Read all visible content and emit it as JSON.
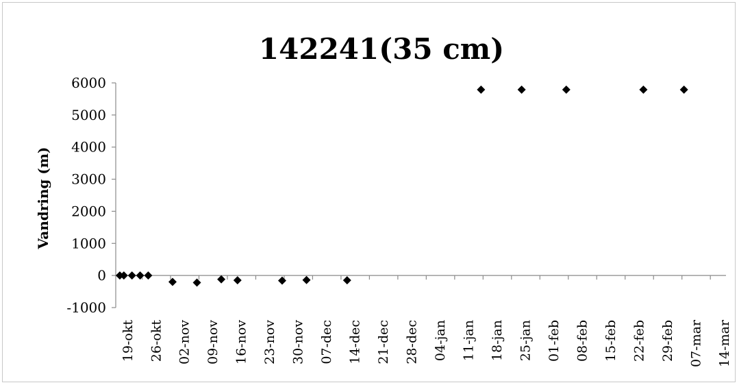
{
  "chart_data": {
    "type": "scatter",
    "title": "142241(35 cm)",
    "xlabel": "",
    "ylabel": "Vandring (m)",
    "ylim": [
      -1000,
      6000
    ],
    "yticks": [
      -1000,
      0,
      1000,
      2000,
      3000,
      4000,
      5000,
      6000
    ],
    "xlim": [
      "2012-10-16",
      "2013-03-14"
    ],
    "xticks": [
      "19-okt",
      "26-okt",
      "02-nov",
      "09-nov",
      "16-nov",
      "23-nov",
      "30-nov",
      "07-dec",
      "14-dec",
      "21-dec",
      "28-dec",
      "04-jan",
      "11-jan",
      "18-jan",
      "25-jan",
      "01-feb",
      "08-feb",
      "15-feb",
      "22-feb",
      "29-feb",
      "07-mar",
      "14-mar"
    ],
    "grid": false,
    "marker": "diamond",
    "marker_color": "#000000",
    "points": [
      {
        "x": "2012-10-17",
        "y": 0
      },
      {
        "x": "2012-10-18",
        "y": 0
      },
      {
        "x": "2012-10-20",
        "y": 0
      },
      {
        "x": "2012-10-22",
        "y": 0
      },
      {
        "x": "2012-10-24",
        "y": 0
      },
      {
        "x": "2012-10-30",
        "y": -200
      },
      {
        "x": "2012-11-05",
        "y": -220
      },
      {
        "x": "2012-11-11",
        "y": -120
      },
      {
        "x": "2012-11-15",
        "y": -150
      },
      {
        "x": "2012-11-26",
        "y": -160
      },
      {
        "x": "2012-12-02",
        "y": -140
      },
      {
        "x": "2012-12-12",
        "y": -150
      },
      {
        "x": "2013-01-14",
        "y": 5790
      },
      {
        "x": "2013-01-24",
        "y": 5790
      },
      {
        "x": "2013-02-04",
        "y": 5790
      },
      {
        "x": "2013-02-23",
        "y": 5790
      },
      {
        "x": "2013-03-05",
        "y": 5790
      }
    ]
  }
}
